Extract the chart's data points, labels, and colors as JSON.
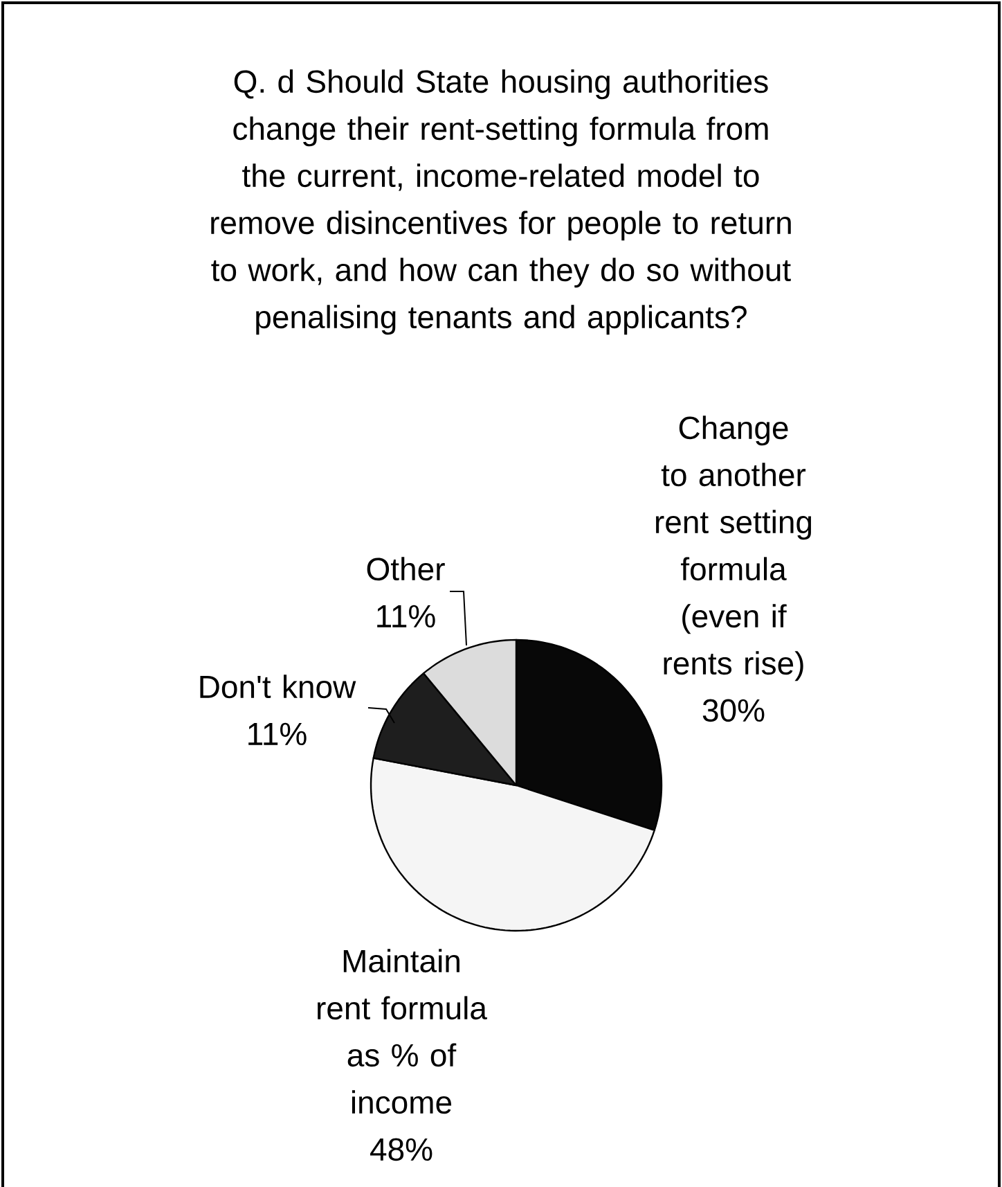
{
  "chart_data": {
    "type": "pie",
    "title": "Q. d Should State housing authorities change their rent-setting formula from the current, income-related model to remove disincentives for people to return to work, and how can they do so without penalising tenants and applicants?",
    "categories": [
      "Change to another rent setting formula (even if rents rise)",
      "Maintain rent formula as % of income",
      "Don't know",
      "Other"
    ],
    "values": [
      30,
      48,
      11,
      11
    ],
    "value_labels": [
      "30%",
      "48%",
      "11%",
      "11%"
    ],
    "colors": [
      "#080808",
      "#f5f5f5",
      "#1e1e1e",
      "#dcdcdc"
    ]
  }
}
